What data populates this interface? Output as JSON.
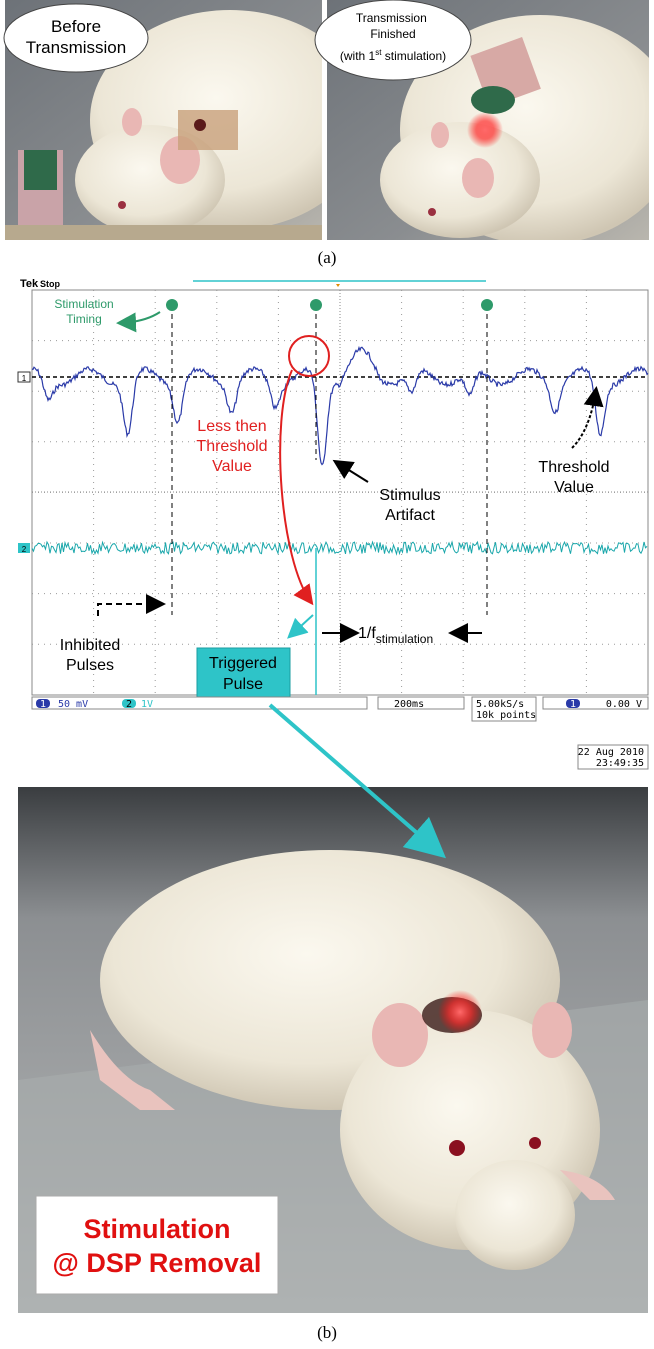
{
  "figure": {
    "panel_a": {
      "left_label": [
        "Before",
        "Transmission"
      ],
      "right_label": {
        "line1": "Transmission",
        "line2": "Finished",
        "line3_start": "(with 1",
        "line3_sup": "st",
        "line3_end": " stimulation)"
      },
      "caption": "(a)"
    },
    "scope": {
      "brand": "Tek",
      "state": "Stop",
      "ch1_marker": "1",
      "ch2_marker": "2",
      "stimulation_timing": [
        "Stimulation",
        "Timing"
      ],
      "less_than_threshold": [
        "Less then",
        "Threshold",
        "Value"
      ],
      "stimulus_artifact": [
        "Stimulus",
        "Artifact"
      ],
      "threshold_value": [
        "Threshold",
        "Value"
      ],
      "inhibited_pulses": [
        "Inhibited",
        "Pulses"
      ],
      "triggered_pulse": [
        "Triggered",
        "Pulse"
      ],
      "period_label": {
        "main": "1/f",
        "sub": "stimulation"
      },
      "status": {
        "ch1": "1",
        "ch1_scale": "50 mV",
        "ch2": "2",
        "ch2_scale": "1V",
        "timebase": "200ms",
        "rate": "5.00kS/s",
        "points": "10k points",
        "trigger_ch": "1",
        "trigger_level": "0.00 V"
      },
      "date": "22 Aug 2010",
      "time": "23:49:35"
    },
    "panel_b": {
      "overlay": [
        "Stimulation",
        "@ DSP Removal"
      ],
      "caption": "(b)"
    }
  }
}
